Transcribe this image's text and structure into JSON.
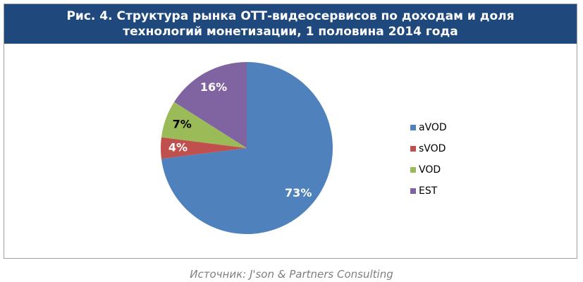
{
  "chart_data": {
    "type": "pie",
    "title": "Рис. 4. Структура рынка ОТТ-видеосервисов по доходам и доля технологий монетизации, 1 половина 2014 года",
    "categories": [
      "aVOD",
      "sVOD",
      "VOD",
      "EST"
    ],
    "values": [
      73,
      4,
      7,
      16
    ],
    "value_labels": [
      "73%",
      "4%",
      "7%",
      "16%"
    ],
    "colors": [
      "#4f81bd",
      "#c0504d",
      "#9bbb59",
      "#8064a2"
    ],
    "label_colors": [
      "#ffffff",
      "#ffffff",
      "#000000",
      "#ffffff"
    ],
    "legend": "right",
    "source": "Источник: J'son & Partners Consulting"
  }
}
